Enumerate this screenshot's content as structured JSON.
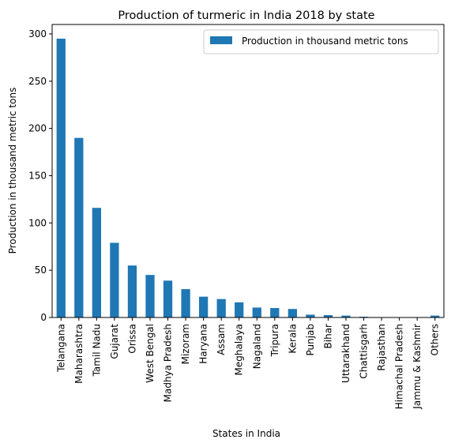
{
  "chart_data": {
    "type": "bar",
    "title": "Production of turmeric in India 2018 by state",
    "xlabel": "States in India",
    "ylabel": "Production in thousand metric tons",
    "ylim": [
      0,
      310
    ],
    "yticks": [
      0,
      50,
      100,
      150,
      200,
      250,
      300
    ],
    "grid": false,
    "legend_position": "top-right",
    "color": "#1f77b4",
    "categories": [
      "Telangana",
      "Maharashtra",
      "Tamil Nadu",
      "Gujarat",
      "Orissa",
      "West Bengal",
      "Madhya Pradesh",
      "Mizoram",
      "Haryana",
      "Assam",
      "Meghalaya",
      "Nagaland",
      "Tripura",
      "Kerala",
      "Punjab",
      "Bihar",
      "Uttarakhand",
      "Chattisgarh",
      "Rajasthan",
      "Himachal Pradesh",
      "Jammu & Kashmir",
      "Others"
    ],
    "series": [
      {
        "name": "Production in thousand metric tons",
        "values": [
          295,
          190,
          116,
          79,
          55,
          45,
          39,
          30,
          22,
          19.5,
          16,
          10.5,
          10,
          9,
          3,
          2.5,
          2,
          0.8,
          0.4,
          0.2,
          0.1,
          2
        ]
      }
    ]
  }
}
